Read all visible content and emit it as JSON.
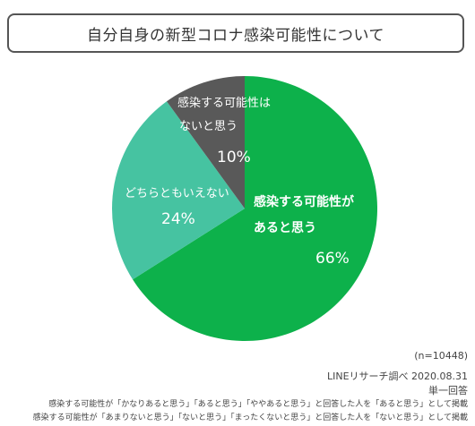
{
  "header": {
    "title": "自分自身の新型コロナ感染可能性について"
  },
  "colors": {
    "likely": "#0db14b",
    "unsure": "#46c3a1",
    "unlikely": "#595959",
    "text_on_slice": "#ffffff"
  },
  "chart_data": {
    "type": "pie",
    "title": "自分自身の新型コロナ感染可能性について",
    "slices": [
      {
        "label_line1": "感染する可能性が",
        "label_line2": "あると思う",
        "value": 66,
        "display": "66%",
        "color": "#0db14b"
      },
      {
        "label_line1": "どちらともいえない",
        "label_line2": "",
        "value": 24,
        "display": "24%",
        "color": "#46c3a1"
      },
      {
        "label_line1": "感染する可能性は",
        "label_line2": "ないと思う",
        "value": 10,
        "display": "10%",
        "color": "#595959"
      }
    ],
    "start": "12 o'clock",
    "direction": "clockwise"
  },
  "footer": {
    "sample": "(n=10448)",
    "source": "LINEリサーチ調べ 2020.08.31",
    "answer_type": "単一回答",
    "note1": "感染する可能性が「かなりあると思う」「あると思う」「ややあると思う」と回答した人を「あると思う」として掲載",
    "note2": "感染する可能性が「あまりないと思う」「ないと思う」「まったくないと思う」と回答した人を「ないと思う」として掲載"
  }
}
